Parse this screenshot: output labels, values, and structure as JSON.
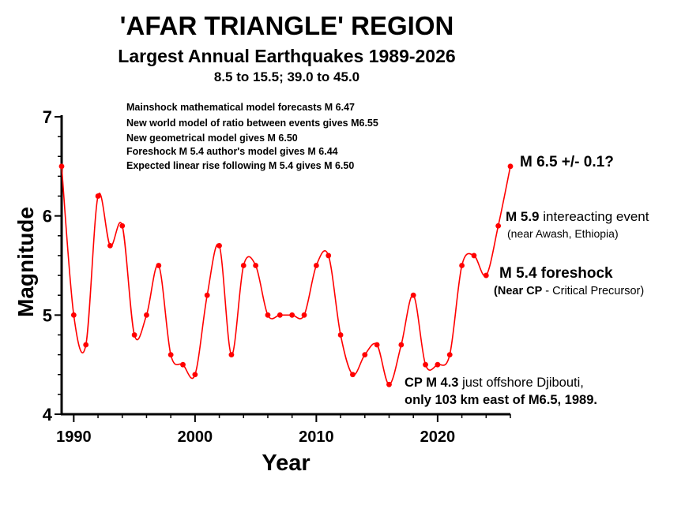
{
  "title": "'AFAR TRIANGLE' REGION",
  "subtitle": "Largest Annual Earthquakes 1989-2026",
  "region": "8.5 to 15.5; 39.0 to 45.0",
  "colors": {
    "series": "#ff0000",
    "axis": "#000000",
    "text": "#000000"
  },
  "chart_data": {
    "type": "line",
    "title": "'AFAR TRIANGLE' REGION",
    "xlabel": "Year",
    "ylabel": "Magnitude",
    "xlim": [
      1989,
      2026
    ],
    "ylim": [
      4,
      7
    ],
    "xticks": [
      1990,
      2000,
      2010,
      2020
    ],
    "yticks": [
      4,
      5,
      6,
      7
    ],
    "grid": false,
    "smooth": true,
    "series": [
      {
        "color": "#ff0000",
        "x": [
          1989,
          1990,
          1991,
          1992,
          1993,
          1994,
          1995,
          1996,
          1997,
          1998,
          1999,
          2000,
          2001,
          2002,
          2003,
          2004,
          2005,
          2006,
          2007,
          2008,
          2009,
          2010,
          2011,
          2012,
          2013,
          2014,
          2015,
          2016,
          2017,
          2018,
          2019,
          2020,
          2021,
          2022,
          2023,
          2024,
          2025,
          2026
        ],
        "y": [
          6.5,
          5.0,
          4.7,
          6.2,
          5.7,
          5.9,
          4.8,
          5.0,
          5.5,
          4.6,
          4.5,
          4.4,
          5.2,
          5.7,
          4.6,
          5.5,
          5.5,
          5.0,
          5.0,
          5.0,
          5.0,
          5.5,
          5.6,
          4.8,
          4.4,
          4.6,
          4.7,
          4.3,
          4.7,
          5.2,
          4.5,
          4.5,
          4.6,
          5.5,
          5.6,
          5.4,
          5.9,
          6.5
        ]
      }
    ],
    "model_notes": [
      "Mainshock mathematical model forecasts M 6.47",
      "New world model of ratio between events gives M6.55",
      "New geometrical model gives M 6.50",
      "Foreshock M 5.4 author's model gives M 6.44",
      "Expected linear rise following M 5.4 gives M 6.50"
    ],
    "annotations": {
      "forecast": "M 6.5 +/- 0.1?",
      "interacting_mag": "M 5.9",
      "interacting_label": "intereacting event",
      "interacting_location": "(near Awash, Ethiopia)",
      "foreshock": "M 5.4 foreshock",
      "cp_open": "(",
      "cp_bold": "Near CP",
      "cp_rest": "- Critical Precursor)",
      "djibouti_bold": "CP M 4.3",
      "djibouti_rest": "just offshore Djibouti,",
      "djibouti_line2": "only 103 km east of M6.5, 1989."
    }
  }
}
